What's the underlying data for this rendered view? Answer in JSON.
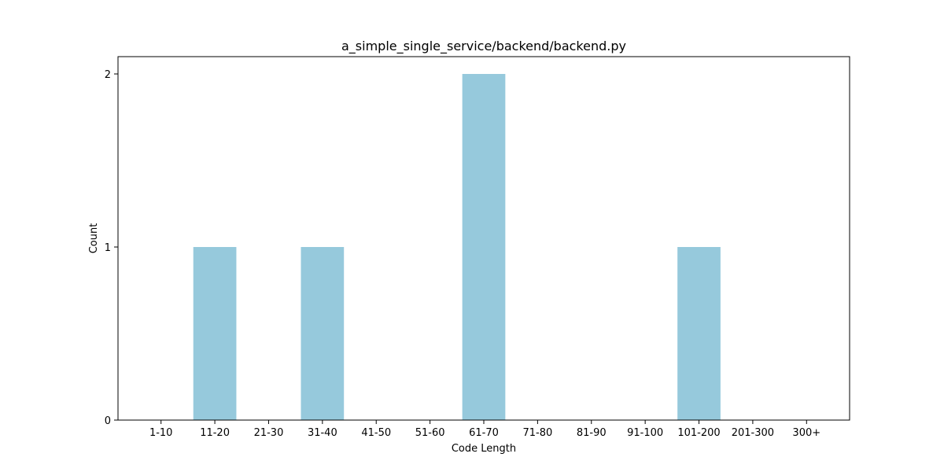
{
  "chart_data": {
    "type": "bar",
    "title": "a_simple_single_service/backend/backend.py",
    "xlabel": "Code Length",
    "ylabel": "Count",
    "categories": [
      "1-10",
      "11-20",
      "21-30",
      "31-40",
      "41-50",
      "51-60",
      "61-70",
      "71-80",
      "81-90",
      "91-100",
      "101-200",
      "201-300",
      "300+"
    ],
    "values": [
      0,
      1,
      0,
      1,
      0,
      0,
      2,
      0,
      0,
      0,
      1,
      0,
      0
    ],
    "ylim": [
      0,
      2.1
    ],
    "yticks": [
      0,
      1,
      2
    ],
    "bar_color": "#96c9dc",
    "grid": false,
    "legend": "none"
  }
}
